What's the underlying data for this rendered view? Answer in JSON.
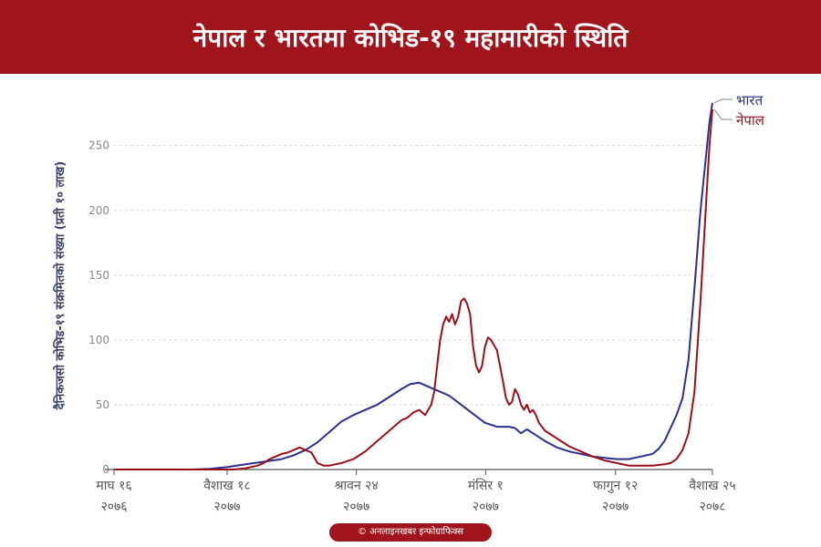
{
  "title": "नेपाल र भारतमा कोभिड-१९ महामारीको स्थिति",
  "credit": "© अनलाइनखबर इन्फोग्राफिक्स",
  "chart_data": {
    "type": "line",
    "ylabel": "दैनिकजसो कोभिड-१९ संक्रमितको संख्या (प्रती १० लाख)",
    "xlabel": "",
    "ylim": [
      0,
      285
    ],
    "yticks": [
      0,
      50,
      100,
      150,
      200,
      250
    ],
    "grid": true,
    "legend": "top-right",
    "x_range": [
      0,
      100
    ],
    "xticks": [
      {
        "pos": 0,
        "line1": "माघ १६",
        "line2": "२०७६"
      },
      {
        "pos": 18.9,
        "line1": "वैशाख १८",
        "line2": "२०७७"
      },
      {
        "pos": 40.5,
        "line1": "श्रावन २४",
        "line2": "२०७७"
      },
      {
        "pos": 62.1,
        "line1": "मंसिर १",
        "line2": "२०७७"
      },
      {
        "pos": 83.8,
        "line1": "फागुन १२",
        "line2": "२०७७"
      },
      {
        "pos": 100,
        "line1": "वैशाख २५",
        "line2": "२०७८"
      }
    ],
    "series": [
      {
        "name": "भारत",
        "color": "#2b2f8f",
        "points": [
          [
            0,
            0
          ],
          [
            13,
            0
          ],
          [
            16,
            0.5
          ],
          [
            19,
            2
          ],
          [
            22,
            4
          ],
          [
            25,
            6
          ],
          [
            28,
            8
          ],
          [
            30,
            11
          ],
          [
            32,
            15
          ],
          [
            34,
            21
          ],
          [
            36,
            29
          ],
          [
            38,
            37
          ],
          [
            40,
            42
          ],
          [
            42,
            46
          ],
          [
            44,
            50
          ],
          [
            46,
            56
          ],
          [
            48,
            62
          ],
          [
            49.5,
            66
          ],
          [
            51,
            67
          ],
          [
            52.5,
            64
          ],
          [
            54,
            61
          ],
          [
            56,
            57
          ],
          [
            58,
            50
          ],
          [
            60,
            43
          ],
          [
            62,
            36
          ],
          [
            64,
            33
          ],
          [
            66,
            33
          ],
          [
            67,
            32
          ],
          [
            68,
            28
          ],
          [
            69,
            31
          ],
          [
            70,
            28
          ],
          [
            72,
            22
          ],
          [
            74,
            17
          ],
          [
            76,
            14
          ],
          [
            78,
            12
          ],
          [
            80,
            10
          ],
          [
            82,
            9
          ],
          [
            84,
            8
          ],
          [
            86,
            8
          ],
          [
            88,
            10
          ],
          [
            90,
            12
          ],
          [
            91,
            16
          ],
          [
            92,
            22
          ],
          [
            93,
            32
          ],
          [
            94,
            42
          ],
          [
            95,
            55
          ],
          [
            96,
            85
          ],
          [
            97,
            140
          ],
          [
            98,
            200
          ],
          [
            99,
            245
          ],
          [
            99.5,
            268
          ],
          [
            100,
            283
          ]
        ]
      },
      {
        "name": "नेपाल",
        "color": "#9a0f1a",
        "points": [
          [
            0,
            0
          ],
          [
            20,
            0
          ],
          [
            22,
            1
          ],
          [
            24,
            3
          ],
          [
            25,
            5
          ],
          [
            26,
            8
          ],
          [
            27,
            10
          ],
          [
            28,
            12
          ],
          [
            29,
            13
          ],
          [
            30,
            15
          ],
          [
            31,
            17
          ],
          [
            32,
            15
          ],
          [
            33,
            13
          ],
          [
            34,
            5
          ],
          [
            35,
            3
          ],
          [
            36,
            3
          ],
          [
            38,
            5
          ],
          [
            40,
            8
          ],
          [
            42,
            14
          ],
          [
            44,
            22
          ],
          [
            46,
            30
          ],
          [
            48,
            38
          ],
          [
            49,
            40
          ],
          [
            50,
            44
          ],
          [
            51,
            46
          ],
          [
            52,
            42
          ],
          [
            53,
            50
          ],
          [
            53.5,
            60
          ],
          [
            54,
            80
          ],
          [
            54.5,
            100
          ],
          [
            55,
            112
          ],
          [
            55.5,
            118
          ],
          [
            56,
            114
          ],
          [
            56.5,
            120
          ],
          [
            57,
            112
          ],
          [
            57.5,
            118
          ],
          [
            58,
            130
          ],
          [
            58.5,
            132
          ],
          [
            59,
            128
          ],
          [
            59.5,
            120
          ],
          [
            60,
            95
          ],
          [
            60.5,
            80
          ],
          [
            61,
            75
          ],
          [
            61.5,
            80
          ],
          [
            62,
            95
          ],
          [
            62.5,
            102
          ],
          [
            63,
            100
          ],
          [
            64,
            92
          ],
          [
            64.5,
            80
          ],
          [
            65,
            68
          ],
          [
            65.5,
            55
          ],
          [
            66,
            50
          ],
          [
            66.5,
            52
          ],
          [
            67,
            62
          ],
          [
            67.5,
            58
          ],
          [
            68,
            50
          ],
          [
            68.5,
            46
          ],
          [
            69,
            50
          ],
          [
            69.5,
            44
          ],
          [
            70,
            46
          ],
          [
            70.5,
            42
          ],
          [
            71,
            36
          ],
          [
            72,
            30
          ],
          [
            74,
            24
          ],
          [
            76,
            18
          ],
          [
            78,
            14
          ],
          [
            80,
            10
          ],
          [
            82,
            7
          ],
          [
            84,
            5
          ],
          [
            86,
            3
          ],
          [
            88,
            3
          ],
          [
            90,
            3
          ],
          [
            92,
            4
          ],
          [
            93,
            5
          ],
          [
            94,
            8
          ],
          [
            95,
            15
          ],
          [
            96,
            28
          ],
          [
            97,
            60
          ],
          [
            98,
            130
          ],
          [
            99,
            210
          ],
          [
            99.5,
            250
          ],
          [
            100,
            278
          ]
        ]
      }
    ]
  }
}
